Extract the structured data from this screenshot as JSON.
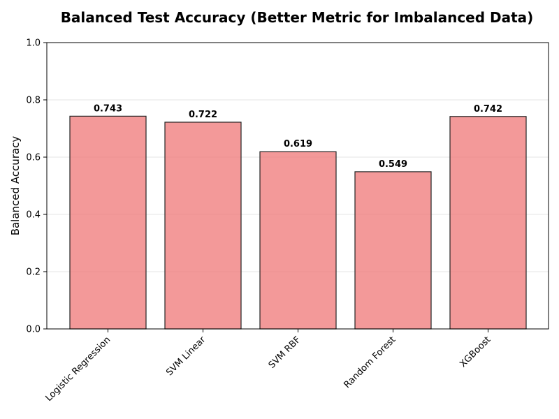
{
  "chart_data": {
    "type": "bar",
    "title": "Balanced Test Accuracy (Better Metric for Imbalanced Data)",
    "xlabel": "",
    "ylabel": "Balanced Accuracy",
    "ylim": [
      0,
      1.0
    ],
    "yticks": [
      "0.0",
      "0.2",
      "0.4",
      "0.6",
      "0.8",
      "1.0"
    ],
    "categories": [
      "Logistic Regression",
      "SVM Linear",
      "SVM RBF",
      "Random Forest",
      "XGBoost"
    ],
    "values": [
      0.743,
      0.722,
      0.619,
      0.549,
      0.742
    ],
    "value_labels": [
      "0.743",
      "0.722",
      "0.619",
      "0.549",
      "0.742"
    ],
    "bar_color": "#f08080",
    "bar_edge_color": "#222222",
    "grid": "horizontal, light"
  }
}
